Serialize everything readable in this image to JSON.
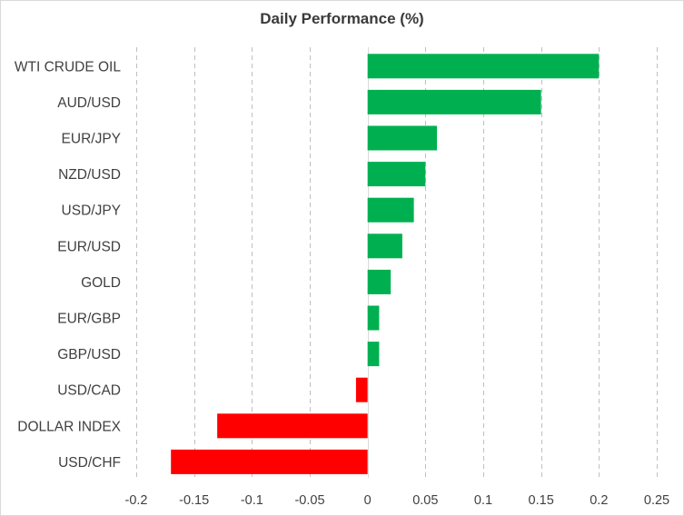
{
  "chart_data": {
    "type": "bar",
    "orientation": "horizontal",
    "title": "Daily Performance  (%)",
    "xlabel": "",
    "ylabel": "",
    "categories": [
      "WTI CRUDE OIL",
      "AUD/USD",
      "EUR/JPY",
      "NZD/USD",
      "USD/JPY",
      "EUR/USD",
      "GOLD",
      "EUR/GBP",
      "GBP/USD",
      "USD/CAD",
      "DOLLAR INDEX",
      "USD/CHF"
    ],
    "values": [
      0.2,
      0.15,
      0.06,
      0.05,
      0.04,
      0.03,
      0.02,
      0.01,
      0.01,
      -0.01,
      -0.13,
      -0.17
    ],
    "xlim": [
      -0.2,
      0.25
    ],
    "xticks": [
      -0.2,
      -0.15,
      -0.1,
      -0.05,
      0,
      0.05,
      0.1,
      0.15,
      0.2,
      0.25
    ],
    "xtick_labels": [
      "-0.2",
      "-0.15",
      "-0.1",
      "-0.05",
      "0",
      "0.05",
      "0.1",
      "0.15",
      "0.2",
      "0.25"
    ],
    "grid": "vertical-dashed",
    "legend": "none",
    "colors": {
      "positive": "#00b050",
      "negative": "#ff0000",
      "grid": "#bfbfbf",
      "text": "#404040"
    }
  }
}
